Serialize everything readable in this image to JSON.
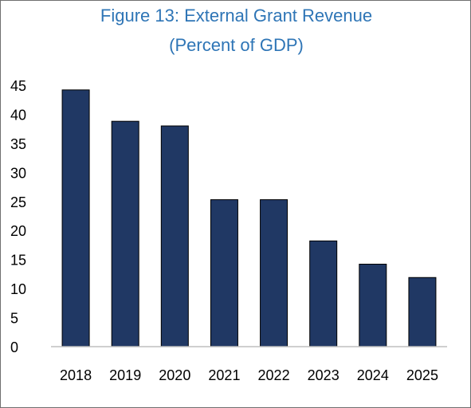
{
  "chart_data": {
    "type": "bar",
    "title": "Figure 13: External Grant Revenue",
    "subtitle": "(Percent of GDP)",
    "categories": [
      "2018",
      "2019",
      "2020",
      "2021",
      "2022",
      "2023",
      "2024",
      "2025"
    ],
    "values": [
      44.2,
      38.8,
      38.0,
      25.3,
      25.3,
      18.2,
      14.2,
      11.9
    ],
    "ylim": [
      0,
      45
    ],
    "yticks": [
      "0",
      "5",
      "10",
      "15",
      "20",
      "25",
      "30",
      "35",
      "40",
      "45"
    ],
    "grid": false,
    "legend": "none",
    "bar_color": "#203864",
    "title_color": "#2e75b6"
  }
}
